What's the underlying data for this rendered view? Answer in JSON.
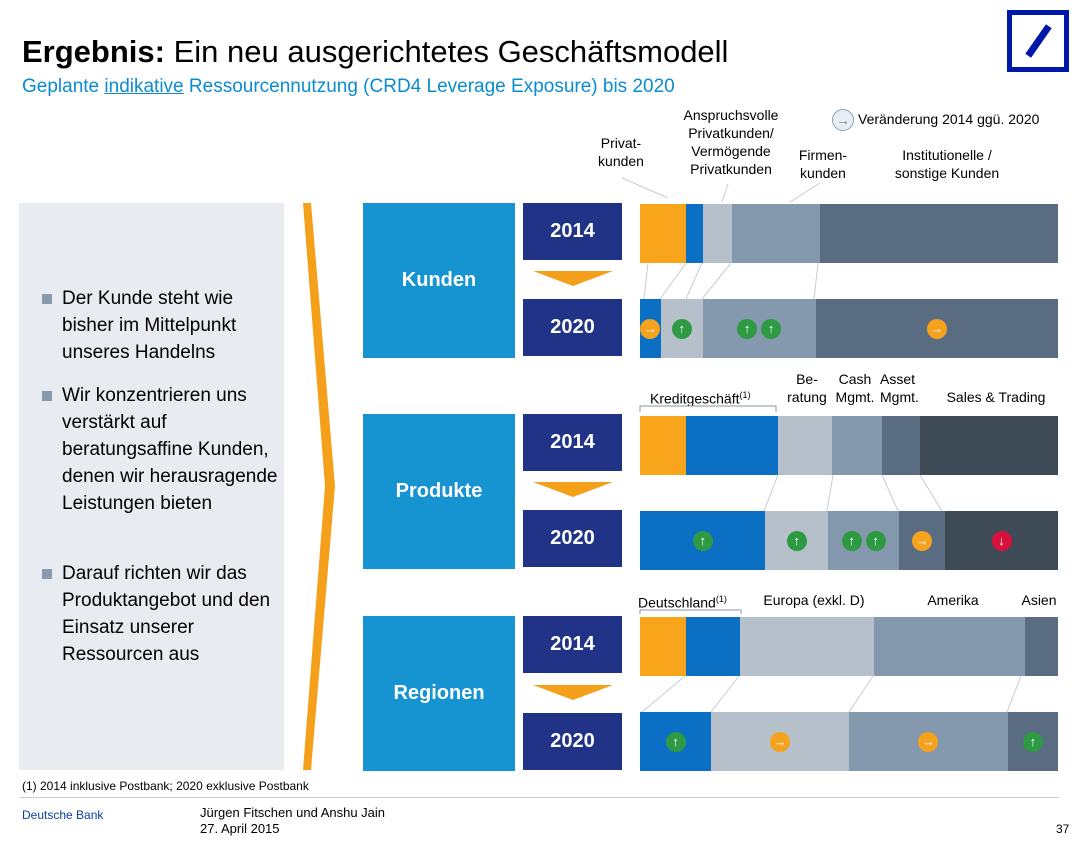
{
  "header": {
    "title_bold": "Ergebnis:",
    "title_rest": " Ein neu ausgerichtetes Geschäftsmodell",
    "subtitle_pre": "Geplante ",
    "subtitle_underlined": "indikative",
    "subtitle_post": " Ressourcennutzung (CRD4 Leverage Exposure) bis 2020"
  },
  "legend": {
    "text": "Veränderung 2014 ggü. 2020",
    "icon": "arrow-right-icon"
  },
  "colors": {
    "orange": "#f8a51b",
    "blue": "#0b6fc4",
    "light_gray": "#b5c0cb",
    "mid_gray": "#8599ae",
    "slate": "#5a6c82",
    "dark": "#3f4a57",
    "category": "#1693d1",
    "year": "#203387",
    "up": "#2e9a44",
    "right": "#f5a21e",
    "down": "#d8103c"
  },
  "left_panel": {
    "bullets": [
      "Der Kunde steht wie bisher im Mittelpunkt unseres Handelns",
      "Wir konzentrieren uns verstärkt auf beratungsaffine Kunden, denen wir herausragende Leistungen bieten",
      "Darauf richten wir das Produktangebot und den Einsatz unserer Ressourcen aus"
    ]
  },
  "years": {
    "from": "2014",
    "to": "2020"
  },
  "kunden": {
    "label": "Kunden",
    "segment_labels": {
      "privat": "Privat-\nkunden",
      "anspruchsvolle": "Anspruchsvolle\nPrivatkunden/\nVermögende\nPrivatkunden",
      "firmen": "Firmen-\nkunden",
      "institutionelle": "Institutionelle /\nsonstige Kunden"
    },
    "bar_2014": [
      {
        "color": "orange",
        "share": 0.11
      },
      {
        "color": "blue",
        "share": 0.04
      },
      {
        "color": "light_gray",
        "share": 0.07
      },
      {
        "color": "mid_gray",
        "share": 0.21
      },
      {
        "color": "slate",
        "share": 0.57
      }
    ],
    "bar_2020": [
      {
        "color": "blue",
        "share": 0.05,
        "icons": [
          "right"
        ]
      },
      {
        "color": "light_gray",
        "share": 0.1,
        "icons": [
          "up"
        ]
      },
      {
        "color": "mid_gray",
        "share": 0.27,
        "icons": [
          "up",
          "up"
        ]
      },
      {
        "color": "slate",
        "share": 0.58,
        "icons": [
          "right"
        ]
      }
    ]
  },
  "produkte": {
    "label": "Produkte",
    "segment_labels": {
      "kredit": "Kreditgeschäft",
      "kredit_sup": "(1)",
      "beratung": "Be-\nratung",
      "cash": "Cash\nMgmt.",
      "asset": "Asset\nMgmt.",
      "sales": "Sales & Trading"
    },
    "bar_2014": [
      {
        "color": "orange",
        "share": 0.11
      },
      {
        "color": "blue",
        "share": 0.22
      },
      {
        "color": "light_gray",
        "share": 0.13
      },
      {
        "color": "mid_gray",
        "share": 0.12
      },
      {
        "color": "slate",
        "share": 0.09
      },
      {
        "color": "dark",
        "share": 0.33
      }
    ],
    "bar_2020": [
      {
        "color": "blue",
        "share": 0.3,
        "icons": [
          "up"
        ]
      },
      {
        "color": "light_gray",
        "share": 0.15,
        "icons": [
          "up"
        ]
      },
      {
        "color": "mid_gray",
        "share": 0.17,
        "icons": [
          "up",
          "up"
        ]
      },
      {
        "color": "slate",
        "share": 0.11,
        "icons": [
          "right"
        ]
      },
      {
        "color": "dark",
        "share": 0.27,
        "icons": [
          "down"
        ]
      }
    ]
  },
  "regionen": {
    "label": "Regionen",
    "segment_labels": {
      "deutschland": "Deutschland",
      "deutschland_sup": "(1)",
      "europa": "Europa (exkl. D)",
      "amerika": "Amerika",
      "asien": "Asien"
    },
    "bar_2014": [
      {
        "color": "orange",
        "share": 0.11
      },
      {
        "color": "blue",
        "share": 0.13
      },
      {
        "color": "light_gray",
        "share": 0.32
      },
      {
        "color": "mid_gray",
        "share": 0.36
      },
      {
        "color": "slate",
        "share": 0.08
      }
    ],
    "bar_2020": [
      {
        "color": "blue",
        "share": 0.17,
        "icons": [
          "up"
        ]
      },
      {
        "color": "light_gray",
        "share": 0.33,
        "icons": [
          "right"
        ]
      },
      {
        "color": "mid_gray",
        "share": 0.38,
        "icons": [
          "right"
        ]
      },
      {
        "color": "slate",
        "share": 0.12,
        "icons": [
          "up"
        ]
      }
    ]
  },
  "footnote": "(1) 2014 inklusive Postbank; 2020 exklusive Postbank",
  "footer": {
    "brand": "Deutsche Bank",
    "presenters": "Jürgen Fitschen und Anshu Jain",
    "date": "27. April 2015",
    "page": "37"
  }
}
